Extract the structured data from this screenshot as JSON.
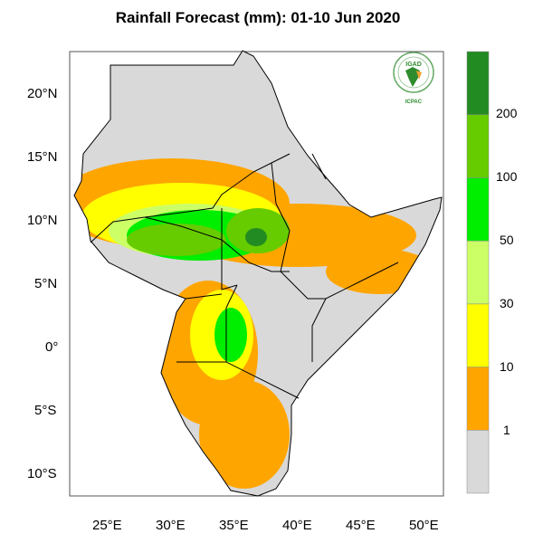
{
  "title": "Rainfall Forecast (mm): 01-10 Jun 2020",
  "lat_ticks": [
    "20°N",
    "15°N",
    "10°N",
    "5°N",
    "0°",
    "5°S",
    "10°S"
  ],
  "lon_ticks": [
    "25°E",
    "30°E",
    "35°E",
    "40°E",
    "45°E",
    "50°E"
  ],
  "logo": {
    "top_text": "IGAD",
    "bottom_text": "ICPAC",
    "colors": {
      "green": "#2e8b2e",
      "orange": "#f0a030"
    }
  },
  "colorbar": {
    "labels": [
      "1",
      "10",
      "30",
      "50",
      "100",
      "200"
    ],
    "bins": [
      {
        "range": "<1",
        "color": "#d9d9d9"
      },
      {
        "range": "1-10",
        "color": "#ffa500"
      },
      {
        "range": "10-30",
        "color": "#ffff00"
      },
      {
        "range": "30-50",
        "color": "#ccff66"
      },
      {
        "range": "50-100",
        "color": "#00ee00"
      },
      {
        "range": "100-200",
        "color": "#66cc00"
      },
      {
        "range": ">200",
        "color": "#228b22"
      }
    ]
  },
  "map": {
    "extent": {
      "lon": [
        21.7,
        51.2
      ],
      "lat": [
        -11.7,
        23.4
      ]
    },
    "land_color": "#d9d9d9",
    "ocean_color": "#ffffff"
  }
}
